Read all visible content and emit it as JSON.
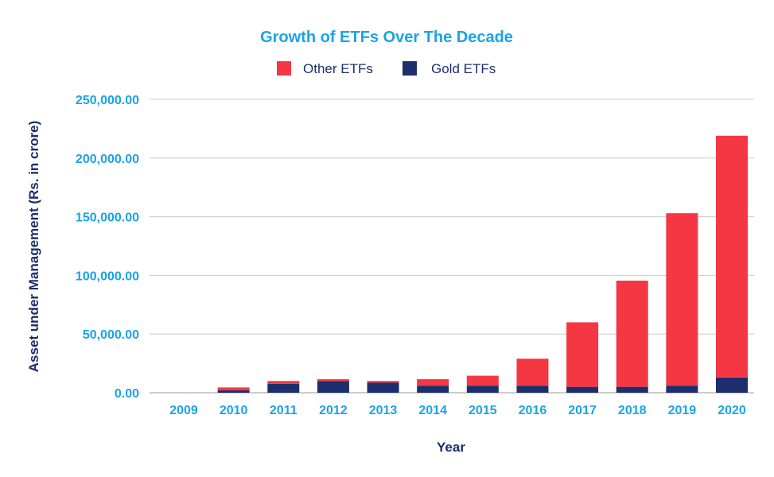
{
  "colors": {
    "accent": "#1aa3e6",
    "other_etfs": "#f43743",
    "gold_etfs": "#1c2e6c",
    "axis_label": "#1c2e6c",
    "grid": "#cccccc"
  },
  "chart_data": {
    "type": "bar",
    "stacked": true,
    "title": "Growth of ETFs Over The Decade",
    "xlabel": "Year",
    "ylabel": "Asset under Management (Rs. in crore)",
    "ylim": [
      0,
      250000
    ],
    "yticks": [
      "0.00",
      "50,000.00",
      "100,000.00",
      "150,000.00",
      "200,000.00",
      "250,000.00"
    ],
    "ytick_values": [
      0,
      50000,
      100000,
      150000,
      200000,
      250000
    ],
    "grid": true,
    "legend_position": "top-center",
    "categories": [
      "2009",
      "2010",
      "2011",
      "2012",
      "2013",
      "2014",
      "2015",
      "2016",
      "2017",
      "2018",
      "2019",
      "2020"
    ],
    "series": [
      {
        "name": "Gold ETFs",
        "color": "#1c2e6c",
        "values": [
          0,
          2000,
          7500,
          10000,
          8500,
          6000,
          6000,
          6000,
          5000,
          5000,
          6000,
          13000
        ]
      },
      {
        "name": "Other ETFs",
        "color": "#f43743",
        "values": [
          0,
          2500,
          2500,
          1500,
          1500,
          5500,
          8500,
          23000,
          55000,
          90500,
          147000,
          206000
        ]
      }
    ]
  }
}
